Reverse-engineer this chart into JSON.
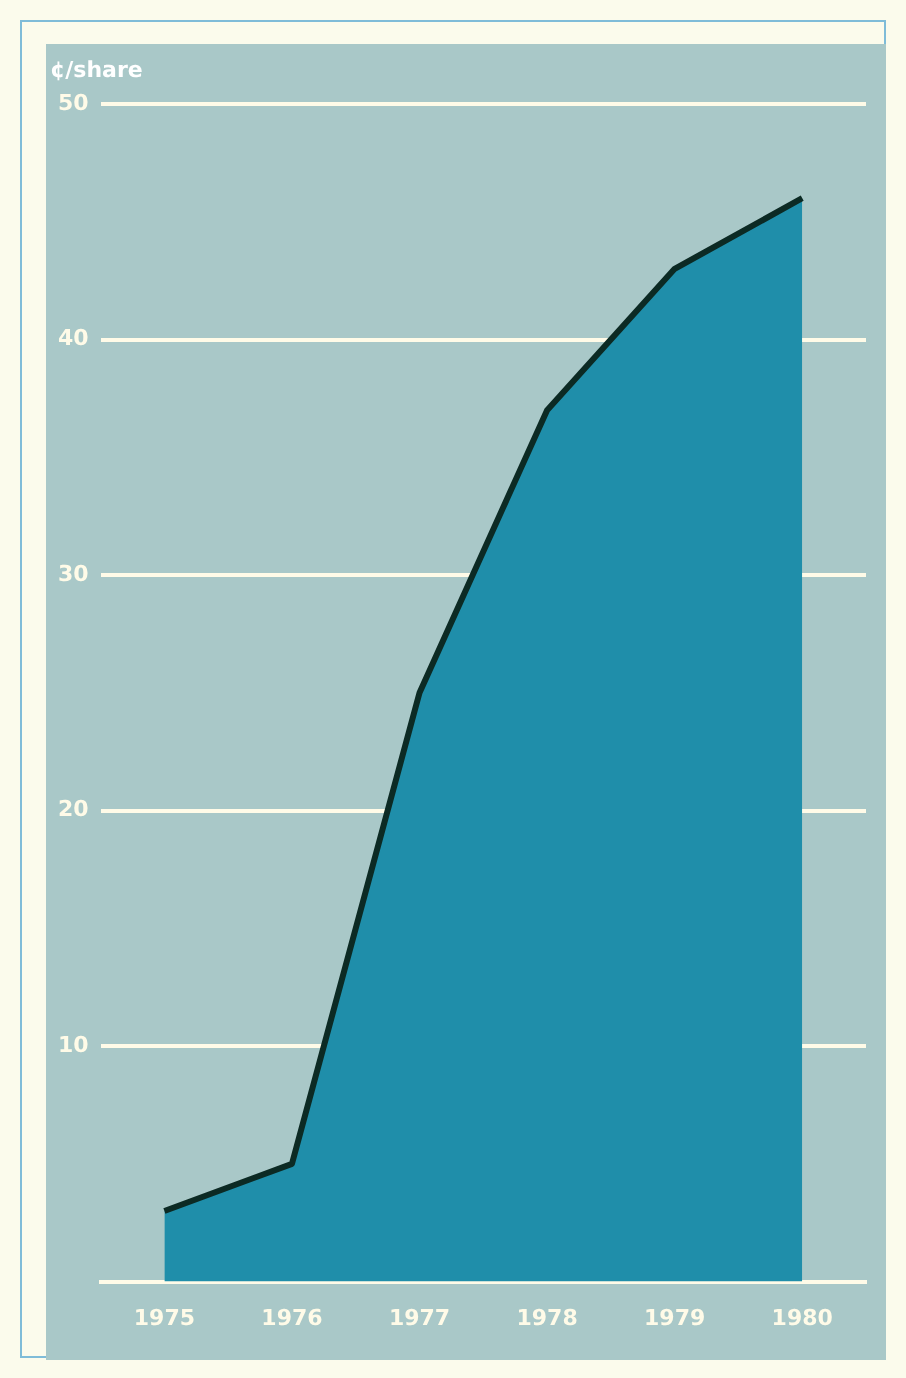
{
  "chart_data": {
    "type": "area",
    "ylabel": "¢/share",
    "categories": [
      "1975",
      "1976",
      "1977",
      "1978",
      "1979",
      "1980"
    ],
    "series": [
      {
        "color": "#1f8eaa",
        "values": [
          3,
          5,
          25,
          37,
          43,
          46
        ]
      }
    ],
    "ylim": [
      0,
      50
    ],
    "yticks": [
      {
        "value": 0,
        "label": null
      },
      10,
      20,
      30,
      40,
      50
    ],
    "grid": "y",
    "legend": false,
    "marker": "none",
    "line_style": "solid"
  }
}
